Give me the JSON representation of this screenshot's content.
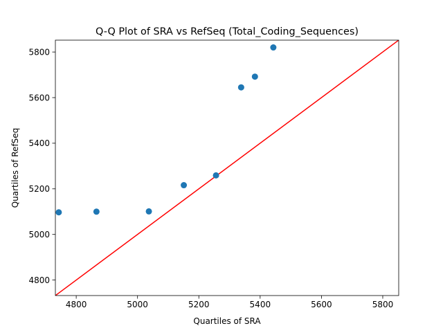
{
  "chart_data": {
    "type": "scatter",
    "title": "Q-Q Plot of SRA vs RefSeq (Total_Coding_Sequences)",
    "xlabel": "Quartiles of SRA",
    "ylabel": "Quartiles of RefSeq",
    "xlim": [
      4732,
      5852
    ],
    "ylim": [
      4732,
      5852
    ],
    "xticks": [
      4800,
      5000,
      5200,
      5400,
      5600,
      5800
    ],
    "yticks": [
      4800,
      5000,
      5200,
      5400,
      5600,
      5800
    ],
    "grid": false,
    "points": [
      {
        "x": 4743,
        "y": 5097
      },
      {
        "x": 4866,
        "y": 5100
      },
      {
        "x": 5037,
        "y": 5101
      },
      {
        "x": 5151,
        "y": 5216
      },
      {
        "x": 5256,
        "y": 5259
      },
      {
        "x": 5338,
        "y": 5645
      },
      {
        "x": 5383,
        "y": 5692
      },
      {
        "x": 5443,
        "y": 5820
      }
    ],
    "reference_line": {
      "from": [
        4732,
        4732
      ],
      "to": [
        5852,
        5852
      ]
    },
    "colors": {
      "points": "#1f77b4",
      "reference_line": "#ff0000",
      "axes": "#000000"
    }
  }
}
